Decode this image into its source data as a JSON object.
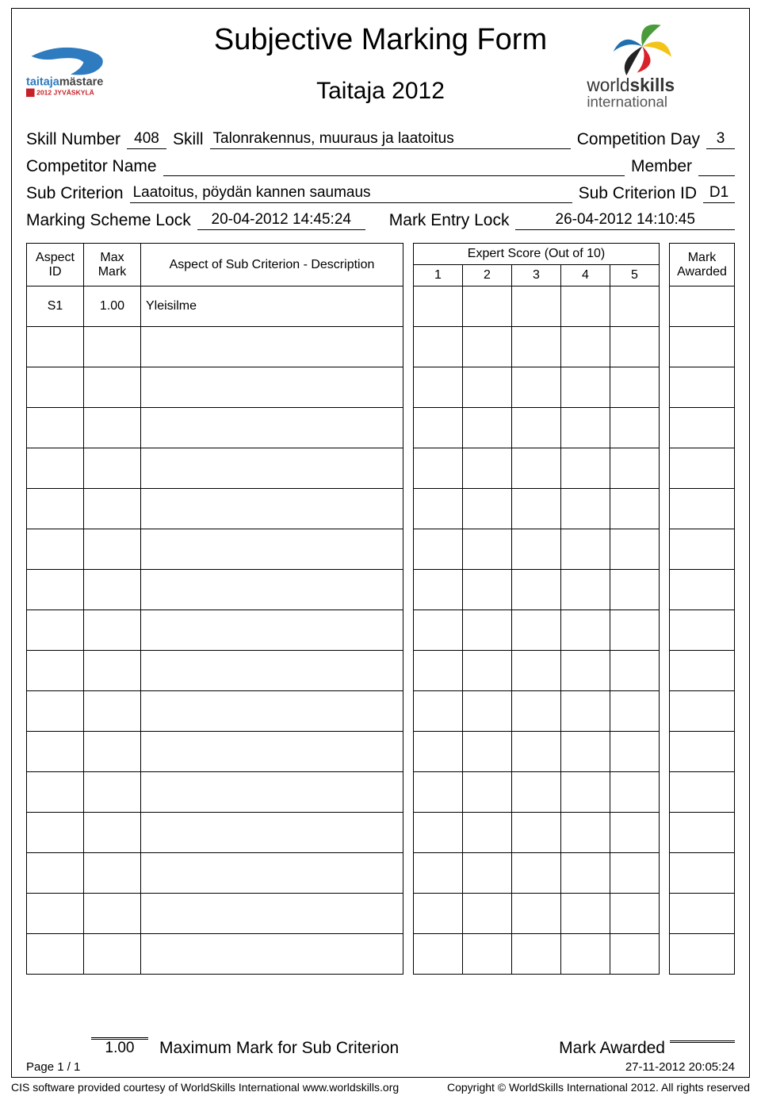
{
  "title": "Subjective Marking Form",
  "event": "Taitaja 2012",
  "labels": {
    "skill_number": "Skill Number",
    "skill": "Skill",
    "competition_day": "Competition Day",
    "competitor_name": "Competitor Name",
    "member": "Member",
    "sub_criterion": "Sub Criterion",
    "sub_criterion_id": "Sub Criterion ID",
    "marking_scheme_lock": "Marking Scheme Lock",
    "mark_entry_lock": "Mark Entry Lock",
    "aspect_id": "Aspect ID",
    "max_mark": "Max Mark",
    "aspect_desc": "Aspect of Sub Criterion - Description",
    "expert_score": "Expert Score (Out of 10)",
    "mark_awarded": "Mark Awarded",
    "max_for_sub": "Maximum Mark for Sub Criterion",
    "awarded_total": "Mark Awarded",
    "page": "Page 1 / 1"
  },
  "values": {
    "skill_number": "408",
    "skill": "Talonrakennus, muuraus ja laatoitus",
    "competition_day": "3",
    "competitor_name": "",
    "member": "",
    "sub_criterion": "Laatoitus, pöydän kannen saumaus",
    "sub_criterion_id": "D1",
    "marking_scheme_lock": "20-04-2012  14:45:24",
    "mark_entry_lock": "26-04-2012  14:10:45",
    "max_total": "1.00",
    "gen_timestamp": "27-11-2012  20:05:24"
  },
  "score_cols": [
    "1",
    "2",
    "3",
    "4",
    "5"
  ],
  "rows": [
    {
      "id": "S1",
      "max": "1.00",
      "desc": "Yleisilme"
    },
    {},
    {},
    {},
    {},
    {},
    {},
    {},
    {},
    {},
    {},
    {},
    {},
    {},
    {},
    {},
    {}
  ],
  "footer": {
    "left": "CIS software provided courtesy of WorldSkills International www.worldskills.org",
    "right": "Copyright © WorldSkills International 2012. All rights reserved"
  }
}
